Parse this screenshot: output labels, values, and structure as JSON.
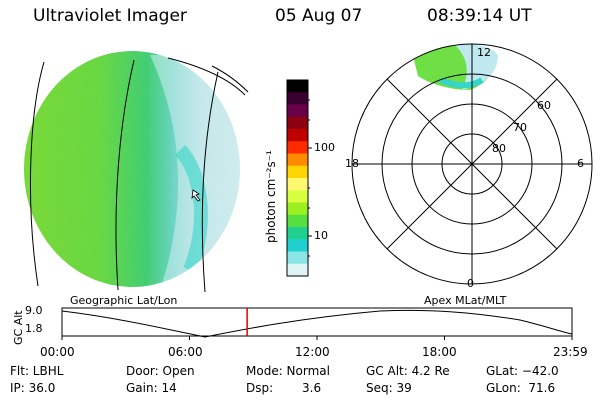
{
  "header": {
    "instrument": "Ultraviolet Imager",
    "date": "05 Aug 07",
    "time": "08:39:14 UT"
  },
  "colorbar": {
    "unit_label": "photon cm⁻²s⁻¹",
    "ticks": [
      "100",
      "10"
    ],
    "colors": [
      "#000000",
      "#3a0030",
      "#6a004a",
      "#8c0010",
      "#c00000",
      "#ff2a00",
      "#ff8a00",
      "#ffd400",
      "#fff870",
      "#d8ff40",
      "#9cf020",
      "#55e040",
      "#20d090",
      "#20d0d0",
      "#8ae6e6",
      "#dff4f4"
    ]
  },
  "left_panel": {
    "label": "Geographic Lat/Lon"
  },
  "right_panel": {
    "label": "Apex MLat/MLT",
    "mlt_labels": {
      "top": "12",
      "left": "18",
      "right": "6",
      "bottom": "0"
    },
    "mlat_labels": [
      "60",
      "70",
      "80"
    ]
  },
  "timeline": {
    "ylabel": "GC Alt",
    "y_ticks": [
      "9.0",
      "1.8"
    ],
    "x_ticks": [
      "00:00",
      "06:00",
      "12:00",
      "18:00",
      "23:59"
    ],
    "current_time_marker_fraction": 0.363
  },
  "status": {
    "flt": "Flt: LBHL",
    "ip": "IP: 36.0",
    "door": "Door: Open",
    "gain": "Gain: 14",
    "mode": "Mode: Normal",
    "dsp_label": "Dsp:",
    "dsp_value": "3.6",
    "gc_alt": "GC Alt: 4.2 Re",
    "seq": "Seq: 39",
    "glat": "GLat: −42.0",
    "glon": "GLon:  71.6"
  }
}
